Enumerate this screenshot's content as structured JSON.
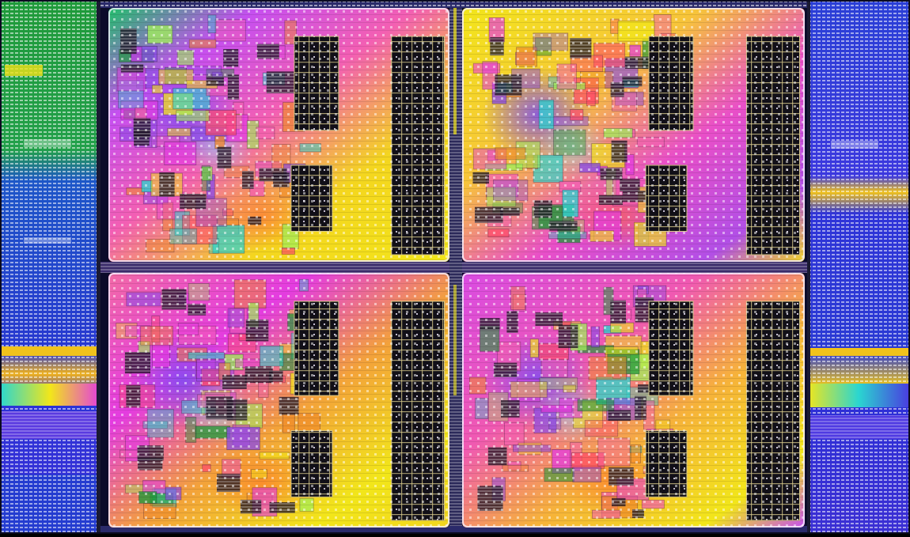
{
  "image": {
    "subject": "die-photo",
    "cores": [
      "core-top-left",
      "core-top-right",
      "core-bottom-left",
      "core-bottom-right"
    ],
    "colors": {
      "background": "#0b0b2a",
      "yellow": "#f2e61a",
      "magenta": "#e43ce0",
      "pink": "#f35fb3",
      "violet": "#8a4be6",
      "orange": "#f08a2a",
      "green": "#1f9a3a",
      "cyan": "#2ad6d0",
      "blue": "#2b33d6",
      "black-block": "#121018",
      "cell-dot": "#f7f7ff"
    }
  }
}
